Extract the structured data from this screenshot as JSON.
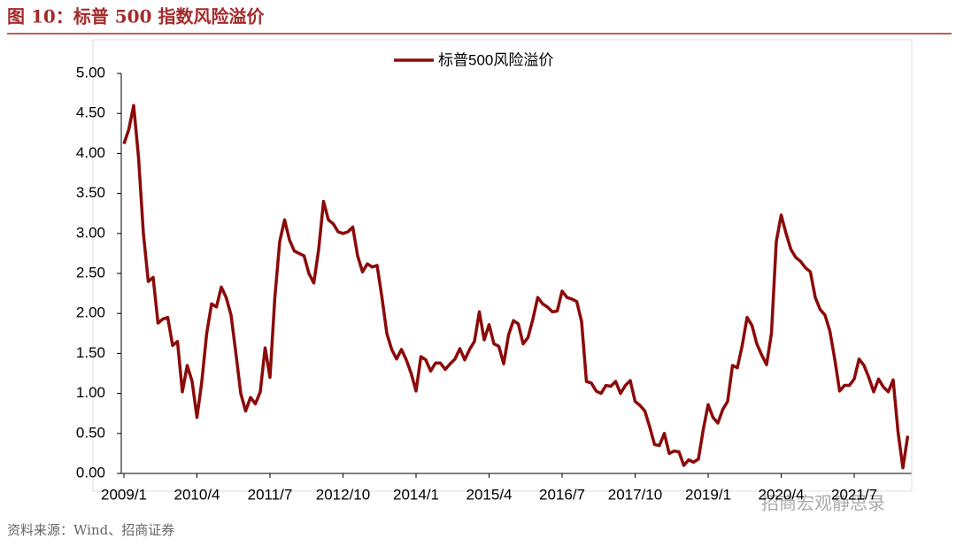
{
  "header": {
    "title": "图 10：标普 500 指数风险溢价"
  },
  "chart_data": {
    "type": "line",
    "categories": [
      "2009/1",
      null,
      null,
      null,
      null,
      null,
      null,
      null,
      null,
      null,
      null,
      null,
      null,
      null,
      null,
      "2010/4",
      null,
      null,
      null,
      null,
      null,
      null,
      null,
      null,
      null,
      null,
      null,
      null,
      null,
      null,
      "2011/7",
      null,
      null,
      null,
      null,
      null,
      null,
      null,
      null,
      null,
      null,
      null,
      null,
      null,
      null,
      "2012/10",
      null,
      null,
      null,
      null,
      null,
      null,
      null,
      null,
      null,
      null,
      null,
      null,
      null,
      null,
      "2014/1",
      null,
      null,
      null,
      null,
      null,
      null,
      null,
      null,
      null,
      null,
      null,
      null,
      null,
      null,
      "2015/4",
      null,
      null,
      null,
      null,
      null,
      null,
      null,
      null,
      null,
      null,
      null,
      null,
      null,
      null,
      "2016/7",
      null,
      null,
      null,
      null,
      null,
      null,
      null,
      null,
      null,
      null,
      null,
      null,
      null,
      null,
      "2017/10",
      null,
      null,
      null,
      null,
      null,
      null,
      null,
      null,
      null,
      null,
      null,
      null,
      null,
      null,
      "2019/1",
      null,
      null,
      null,
      null,
      null,
      null,
      null,
      null,
      null,
      null,
      null,
      null,
      null,
      null,
      "2020/4",
      null,
      null,
      null,
      null,
      null,
      null,
      null,
      null,
      null,
      null,
      null,
      null,
      null,
      null,
      "2021/7",
      null,
      null,
      null,
      null,
      null,
      null,
      null,
      null,
      null,
      null,
      null
    ],
    "series": [
      {
        "name": "标普500风险溢价",
        "color": "#8b0a0a",
        "values": [
          4.12,
          4.3,
          4.6,
          3.95,
          3.0,
          2.4,
          2.45,
          1.88,
          1.93,
          1.95,
          1.6,
          1.65,
          1.02,
          1.35,
          1.15,
          0.7,
          1.15,
          1.75,
          2.12,
          2.08,
          2.33,
          2.2,
          1.98,
          1.5,
          1.0,
          0.78,
          0.95,
          0.87,
          1.02,
          1.57,
          1.2,
          2.2,
          2.9,
          3.17,
          2.92,
          2.78,
          2.75,
          2.72,
          2.5,
          2.38,
          2.8,
          3.4,
          3.17,
          3.12,
          3.02,
          3.0,
          3.02,
          3.08,
          2.72,
          2.52,
          2.62,
          2.58,
          2.6,
          2.2,
          1.75,
          1.55,
          1.43,
          1.55,
          1.42,
          1.25,
          1.03,
          1.46,
          1.42,
          1.28,
          1.38,
          1.38,
          1.3,
          1.37,
          1.43,
          1.56,
          1.42,
          1.55,
          1.65,
          2.02,
          1.67,
          1.86,
          1.62,
          1.59,
          1.37,
          1.73,
          1.91,
          1.87,
          1.62,
          1.7,
          1.93,
          2.2,
          2.12,
          2.08,
          2.02,
          2.03,
          2.28,
          2.2,
          2.18,
          2.15,
          1.9,
          1.15,
          1.13,
          1.03,
          1.0,
          1.1,
          1.09,
          1.15,
          1.0,
          1.1,
          1.16,
          0.9,
          0.85,
          0.78,
          0.58,
          0.36,
          0.35,
          0.5,
          0.25,
          0.28,
          0.27,
          0.1,
          0.17,
          0.14,
          0.18,
          0.55,
          0.86,
          0.7,
          0.63,
          0.8,
          0.9,
          1.35,
          1.32,
          1.6,
          1.95,
          1.85,
          1.62,
          1.48,
          1.36,
          1.75,
          2.9,
          3.23,
          3.0,
          2.8,
          2.7,
          2.65,
          2.57,
          2.52,
          2.2,
          2.05,
          1.98,
          1.78,
          1.43,
          1.03,
          1.1,
          1.1,
          1.18,
          1.43,
          1.35,
          1.2,
          1.02,
          1.18,
          1.08,
          1.02,
          1.17,
          0.52,
          0.07,
          0.47
        ]
      }
    ],
    "ylim": [
      0,
      5
    ],
    "yticks": [
      {
        "value": 0,
        "label": "0.00"
      },
      {
        "value": 0.5,
        "label": "0.50"
      },
      {
        "value": 1,
        "label": "1.00"
      },
      {
        "value": 1.5,
        "label": "1.50"
      },
      {
        "value": 2,
        "label": "2.00"
      },
      {
        "value": 2.5,
        "label": "2.50"
      },
      {
        "value": 3,
        "label": "3.00"
      },
      {
        "value": 3.5,
        "label": "3.50"
      },
      {
        "value": 4,
        "label": "4.00"
      },
      {
        "value": 4.5,
        "label": "4.50"
      },
      {
        "value": 5,
        "label": "5.00"
      }
    ],
    "legend": "top"
  },
  "footer": {
    "source": "资料来源：Wind、招商证券",
    "watermark": "招商宏观静思录"
  }
}
